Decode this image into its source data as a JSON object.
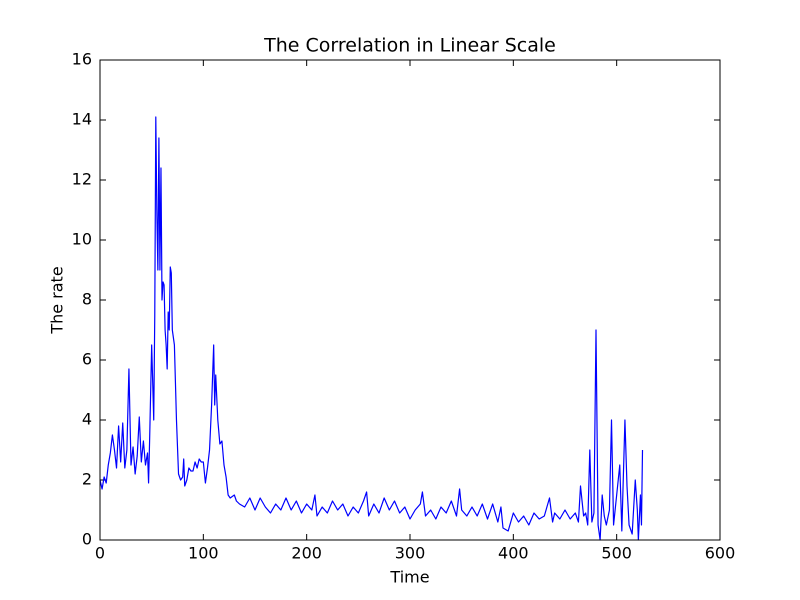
{
  "chart_data": {
    "type": "line",
    "title": "The Correlation in Linear Scale",
    "x_label": "Time",
    "y_label": "The rate",
    "xlim": [
      0,
      600
    ],
    "xticks": [
      0,
      100,
      200,
      300,
      400,
      500,
      600
    ],
    "ylim": [
      0,
      16
    ],
    "yticks": [
      0,
      2,
      4,
      6,
      8,
      10,
      12,
      14,
      16
    ],
    "grid": false,
    "color": "#0000ff",
    "x": [
      0,
      2,
      4,
      6,
      8,
      10,
      12,
      14,
      16,
      18,
      20,
      22,
      24,
      26,
      28,
      30,
      32,
      34,
      36,
      38,
      40,
      42,
      44,
      46,
      47,
      48,
      50,
      52,
      53,
      54,
      55,
      56,
      57,
      58,
      59,
      60,
      61,
      62,
      63,
      64,
      65,
      66,
      67,
      68,
      69,
      70,
      72,
      74,
      76,
      78,
      80,
      81,
      82,
      84,
      86,
      88,
      90,
      92,
      94,
      96,
      98,
      100,
      102,
      104,
      106,
      108,
      110,
      111,
      112,
      114,
      116,
      118,
      120,
      122,
      124,
      126,
      130,
      132,
      135,
      140,
      145,
      150,
      155,
      160,
      165,
      170,
      175,
      180,
      185,
      190,
      195,
      200,
      205,
      208,
      210,
      215,
      220,
      225,
      230,
      235,
      240,
      245,
      250,
      255,
      258,
      260,
      265,
      270,
      275,
      280,
      285,
      290,
      295,
      300,
      305,
      310,
      312,
      315,
      320,
      325,
      330,
      335,
      340,
      345,
      348,
      350,
      355,
      360,
      365,
      370,
      375,
      380,
      385,
      388,
      390,
      395,
      400,
      405,
      410,
      415,
      420,
      425,
      430,
      435,
      438,
      440,
      445,
      450,
      455,
      460,
      463,
      465,
      468,
      470,
      472,
      474,
      476,
      478,
      480,
      482,
      484,
      486,
      488,
      490,
      493,
      495,
      497,
      500,
      503,
      505,
      508,
      510,
      512,
      515,
      518,
      520,
      521,
      523,
      524,
      525
    ],
    "values": [
      2.0,
      1.7,
      2.1,
      1.9,
      2.5,
      2.9,
      3.5,
      3.0,
      2.4,
      3.8,
      2.6,
      3.9,
      2.4,
      3.0,
      5.7,
      2.5,
      3.1,
      2.2,
      2.8,
      4.1,
      2.6,
      3.3,
      2.5,
      2.9,
      1.9,
      3.3,
      6.5,
      4.0,
      7.5,
      14.1,
      11.0,
      9.0,
      13.4,
      9.0,
      12.4,
      8.0,
      8.6,
      8.5,
      7.0,
      6.5,
      5.7,
      7.6,
      7.0,
      9.1,
      8.9,
      7.0,
      6.5,
      4.0,
      2.2,
      2.0,
      2.1,
      2.7,
      1.8,
      2.0,
      2.4,
      2.3,
      2.3,
      2.6,
      2.4,
      2.7,
      2.6,
      2.6,
      1.9,
      2.4,
      3.0,
      4.5,
      6.5,
      4.5,
      5.5,
      4.0,
      3.2,
      3.3,
      2.5,
      2.1,
      1.5,
      1.4,
      1.5,
      1.3,
      1.2,
      1.1,
      1.4,
      1.0,
      1.4,
      1.1,
      0.9,
      1.2,
      1.0,
      1.4,
      1.0,
      1.3,
      0.9,
      1.2,
      1.0,
      1.5,
      0.8,
      1.1,
      0.9,
      1.3,
      1.0,
      1.2,
      0.8,
      1.1,
      0.9,
      1.3,
      1.6,
      0.8,
      1.2,
      0.9,
      1.4,
      1.0,
      1.3,
      0.9,
      1.1,
      0.7,
      1.0,
      1.2,
      1.6,
      0.8,
      1.0,
      0.7,
      1.1,
      0.9,
      1.3,
      0.8,
      1.7,
      1.0,
      0.8,
      1.1,
      0.8,
      1.2,
      0.7,
      1.2,
      0.6,
      1.1,
      0.4,
      0.3,
      0.9,
      0.6,
      0.8,
      0.5,
      0.9,
      0.7,
      0.8,
      1.4,
      0.6,
      0.9,
      0.7,
      1.0,
      0.7,
      0.9,
      0.6,
      1.8,
      0.8,
      0.9,
      0.5,
      3.0,
      0.6,
      0.9,
      7.0,
      0.5,
      0.0,
      1.5,
      0.8,
      0.5,
      1.0,
      4.0,
      0.5,
      1.5,
      2.5,
      0.3,
      4.0,
      1.8,
      0.5,
      0.2,
      2.0,
      1.0,
      0.0,
      1.5,
      0.5,
      3.0
    ]
  }
}
